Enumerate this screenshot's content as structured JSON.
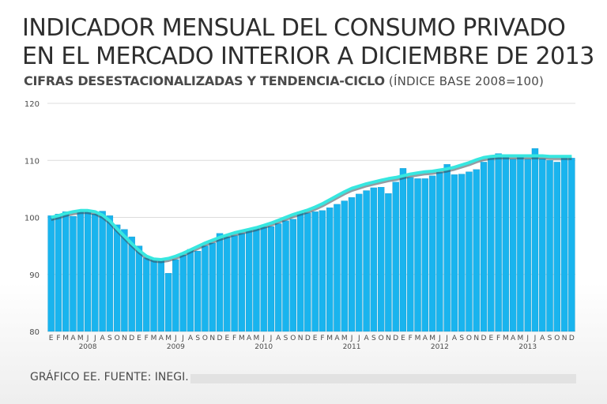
{
  "header": {
    "title_line1": "INDICADOR MENSUAL DEL CONSUMO PRIVADO",
    "title_line2": "EN EL  MERCADO INTERIOR A DICIEMBRE DE 2013",
    "subtitle_bold": "CIFRAS DESESTACIONALIZADAS Y TENDENCIA-CICLO",
    "subtitle_base": "(ÍNDICE BASE 2008=100)"
  },
  "footer": {
    "source": "GRÁFICO EE. FUENTE: INEGI."
  },
  "colors": {
    "bar": "#19b4ee",
    "bar_stroke": "#0a8fc4",
    "trend": "#37e7e0",
    "trend_shadow": "#3a4a55",
    "grid": "#dcdcdc",
    "text": "#4a4a4a"
  },
  "chart_data": {
    "type": "bar",
    "title": "INDICADOR MENSUAL DEL CONSUMO PRIVADO EN EL MERCADO INTERIOR A DICIEMBRE DE 2013",
    "subtitle": "CIFRAS DESESTACIONALIZADAS Y TENDENCIA-CICLO (ÍNDICE BASE 2008=100)",
    "ylim": [
      80,
      120
    ],
    "yticks": [
      80,
      90,
      100,
      110,
      120
    ],
    "grid": true,
    "month_labels": [
      "E",
      "F",
      "M",
      "A",
      "M",
      "J",
      "J",
      "A",
      "S",
      "O",
      "N",
      "D"
    ],
    "years": [
      "2008",
      "2009",
      "2010",
      "2011",
      "2012",
      "2013"
    ],
    "series": [
      {
        "name": "Cifras desestacionalizadas",
        "type": "bar",
        "values": [
          100.3,
          100.6,
          101.0,
          100.2,
          101.0,
          101.2,
          100.6,
          101.1,
          100.3,
          98.7,
          97.9,
          96.6,
          95.0,
          92.9,
          92.6,
          92.5,
          90.2,
          92.6,
          93.4,
          94.4,
          94.1,
          95.0,
          95.5,
          97.2,
          96.6,
          96.8,
          97.2,
          98.0,
          98.0,
          98.3,
          98.4,
          98.9,
          99.4,
          99.7,
          101.0,
          100.8,
          101.0,
          101.2,
          101.7,
          102.3,
          102.9,
          103.5,
          104.1,
          104.7,
          105.2,
          105.3,
          104.2,
          106.2,
          108.6,
          107.0,
          106.8,
          106.8,
          107.3,
          107.9,
          109.3,
          107.5,
          107.6,
          108.0,
          108.4,
          109.7,
          110.7,
          111.2,
          110.6,
          110.2,
          110.6,
          110.2,
          112.1,
          110.3,
          110.0,
          109.7,
          110.4,
          110.4
        ]
      },
      {
        "name": "Tendencia-ciclo",
        "type": "line",
        "values": [
          100.0,
          100.3,
          100.7,
          101.0,
          101.2,
          101.2,
          101.0,
          100.4,
          99.4,
          98.0,
          96.7,
          95.4,
          94.2,
          93.2,
          92.7,
          92.6,
          92.8,
          93.2,
          93.7,
          94.3,
          94.9,
          95.5,
          96.0,
          96.5,
          96.9,
          97.3,
          97.6,
          97.9,
          98.2,
          98.6,
          99.0,
          99.5,
          100.0,
          100.5,
          100.9,
          101.3,
          101.8,
          102.4,
          103.1,
          103.8,
          104.5,
          105.1,
          105.5,
          105.9,
          106.2,
          106.5,
          106.8,
          107.0,
          107.3,
          107.6,
          107.8,
          108.0,
          108.1,
          108.3,
          108.5,
          108.8,
          109.2,
          109.6,
          110.1,
          110.5,
          110.7,
          110.8,
          110.8,
          110.8,
          110.8,
          110.8,
          110.8,
          110.8,
          110.7,
          110.7,
          110.7,
          110.7
        ]
      }
    ]
  }
}
